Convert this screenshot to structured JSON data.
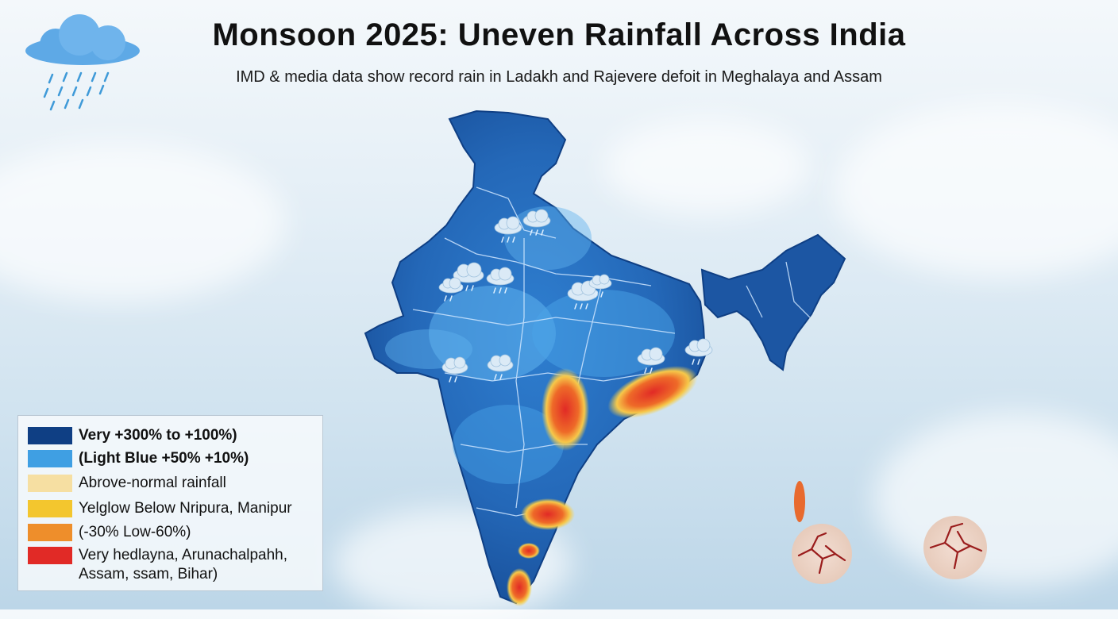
{
  "header": {
    "title": "Monsoon 2025: Uneven Rainfall Across India",
    "subtitle": "IMD & media data show record rain in Ladakh and Rajevere defoit in Meghalaya and Assam"
  },
  "legend": {
    "items": [
      {
        "label": "Very +300% to +100%)",
        "color": "#0f3f84"
      },
      {
        "label": "(Light Blue +50% +10%)",
        "color": "#3f9fe3"
      },
      {
        "label": "Abrove-normal rainfall",
        "color": "#f6dfa2"
      },
      {
        "label": "Yelglow Below Nripura, Manipur",
        "color": "#f3c62e"
      },
      {
        "label": "(-30% Low-60%)",
        "color": "#ee8e2b"
      },
      {
        "label": "Very hedlayna, Arunachalpahh, Assam, ssam, Bihar)",
        "color": "#e12a26"
      }
    ]
  },
  "icons": {
    "corner": "rain-cloud-icon",
    "map": "rain-cloud-icon",
    "drought": "cracked-earth-icon"
  },
  "colors": {
    "deep_blue": "#1c56a3",
    "mid_blue": "#2f7fd0",
    "light_blue": "#5fb2ee",
    "deficit_red": "#e12a26",
    "deficit_orange": "#f0892a",
    "deficit_yellow": "#f6d14a"
  }
}
